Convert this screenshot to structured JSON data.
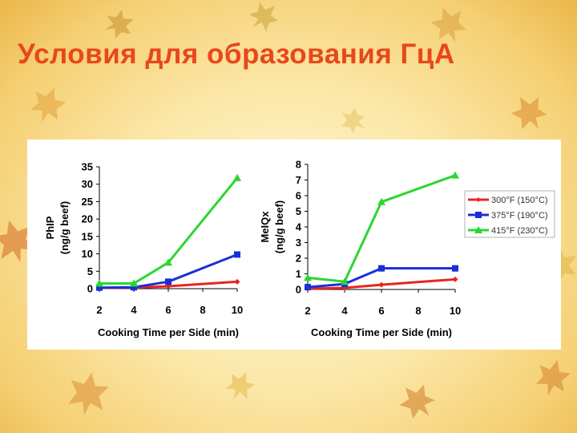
{
  "slide": {
    "title": "Условия для образования ГцА"
  },
  "chart_data": [
    {
      "type": "line",
      "xlabel": "Cooking Time per Side (min)",
      "ylabel": "PhIP (ng/g beef)",
      "x": [
        2,
        4,
        6,
        8,
        10
      ],
      "ylim": [
        0,
        35
      ],
      "y_ticks": [
        0,
        5,
        10,
        15,
        20,
        25,
        30,
        35
      ],
      "grid": false,
      "series": [
        {
          "name": "300°F (150°C)",
          "color": "#e8261c",
          "marker": "diamond",
          "x": [
            2,
            4,
            6,
            10
          ],
          "values": [
            0.2,
            0.3,
            0.7,
            2.0
          ]
        },
        {
          "name": "375°F (190°C)",
          "color": "#1a2fd6",
          "marker": "square",
          "x": [
            2,
            4,
            6,
            10
          ],
          "values": [
            0.3,
            0.4,
            2.0,
            9.8
          ]
        },
        {
          "name": "415°F (230°C)",
          "color": "#2bd631",
          "marker": "triangle",
          "x": [
            2,
            4,
            6,
            10
          ],
          "values": [
            1.5,
            1.5,
            7.5,
            31.8
          ]
        }
      ]
    },
    {
      "type": "line",
      "xlabel": "Cooking Time per Side (min)",
      "ylabel": "MeIQx (ng/g beef)",
      "x": [
        2,
        4,
        6,
        8,
        10
      ],
      "ylim": [
        0,
        8
      ],
      "y_ticks": [
        0,
        1,
        2,
        3,
        4,
        5,
        6,
        7,
        8
      ],
      "grid": false,
      "legend": "right",
      "series": [
        {
          "name": "300°F (150°C)",
          "color": "#e8261c",
          "marker": "diamond",
          "x": [
            2,
            4,
            6,
            10
          ],
          "values": [
            0.05,
            0.1,
            0.3,
            0.65
          ]
        },
        {
          "name": "375°F (190°C)",
          "color": "#1a2fd6",
          "marker": "square",
          "x": [
            2,
            4,
            6,
            10
          ],
          "values": [
            0.15,
            0.35,
            1.35,
            1.35
          ]
        },
        {
          "name": "415°F (230°C)",
          "color": "#2bd631",
          "marker": "triangle",
          "x": [
            2,
            4,
            6,
            10
          ],
          "values": [
            0.75,
            0.5,
            5.6,
            7.3
          ]
        }
      ]
    }
  ]
}
